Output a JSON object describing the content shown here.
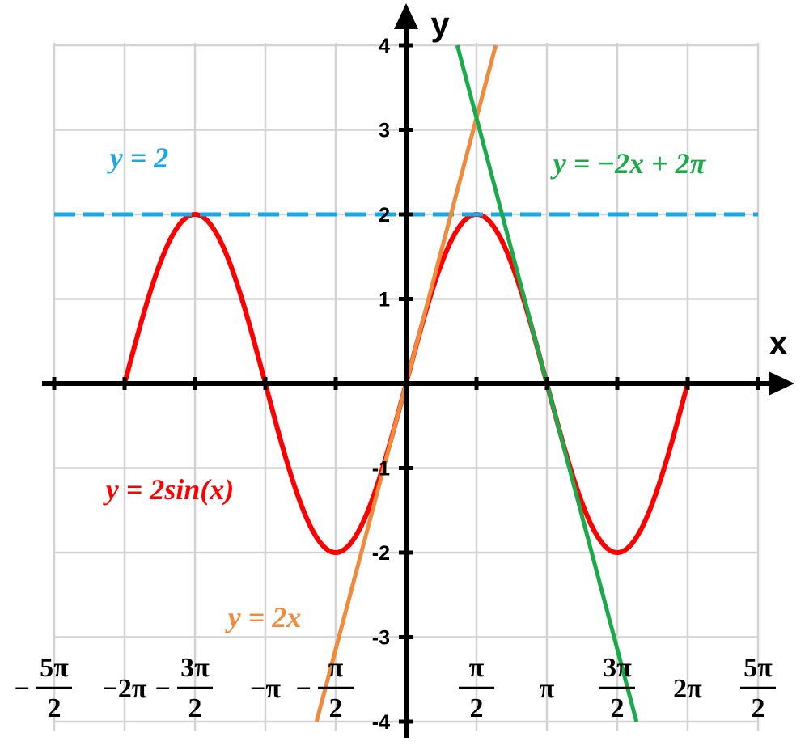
{
  "chart_data": {
    "type": "line",
    "xlabel": "x",
    "ylabel": "y",
    "xlim": [
      -7.853981634,
      7.853981634
    ],
    "ylim": [
      -4,
      4
    ],
    "grid": true,
    "x_ticks": [
      {
        "value": -7.853981634,
        "sign": "−",
        "num": "5π",
        "den": "2",
        "text": ""
      },
      {
        "value": -6.283185307,
        "sign": "",
        "num": "",
        "den": "",
        "text": "−2π"
      },
      {
        "value": -4.71238898,
        "sign": "−",
        "num": "3π",
        "den": "2",
        "text": ""
      },
      {
        "value": -3.141592654,
        "sign": "",
        "num": "",
        "den": "",
        "text": "−π"
      },
      {
        "value": -1.570796327,
        "sign": "−",
        "num": "π",
        "den": "2",
        "text": ""
      },
      {
        "value": 1.570796327,
        "sign": "",
        "num": "π",
        "den": "2",
        "text": ""
      },
      {
        "value": 3.141592654,
        "sign": "",
        "num": "",
        "den": "",
        "text": "π"
      },
      {
        "value": 4.71238898,
        "sign": "",
        "num": "3π",
        "den": "2",
        "text": ""
      },
      {
        "value": 6.283185307,
        "sign": "",
        "num": "",
        "den": "",
        "text": "2π"
      },
      {
        "value": 7.853981634,
        "sign": "",
        "num": "5π",
        "den": "2",
        "text": ""
      }
    ],
    "y_ticks": [
      {
        "value": 4,
        "label": "4"
      },
      {
        "value": 3,
        "label": "3"
      },
      {
        "value": 2,
        "label": "2"
      },
      {
        "value": 1,
        "label": "1"
      },
      {
        "value": -1,
        "label": "-1"
      },
      {
        "value": -2,
        "label": "-2"
      },
      {
        "value": -3,
        "label": "-3"
      },
      {
        "value": -4,
        "label": "-4"
      }
    ],
    "series": [
      {
        "name": "y = 2sin(x)",
        "kind": "function",
        "fn": "2sin",
        "x_range": [
          -6.283185307,
          6.283185307
        ],
        "color": "#ff0000",
        "dashed": false
      },
      {
        "name": "y = 2",
        "kind": "line",
        "slope": 0,
        "intercept": 2,
        "x_range": [
          -7.853981634,
          7.853981634
        ],
        "color": "#1aa7e6",
        "dashed": true
      },
      {
        "name": "y = 2x",
        "kind": "line",
        "slope": 2,
        "intercept": 0,
        "x_range": [
          -2.0,
          2.0
        ],
        "color": "#f08a3c",
        "dashed": false
      },
      {
        "name": "y = −2x + 2π",
        "kind": "line",
        "slope": -2,
        "intercept": 6.283185307,
        "x_range": [
          1.14159,
          5.14159
        ],
        "color": "#1aaa4a",
        "dashed": false
      }
    ]
  }
}
